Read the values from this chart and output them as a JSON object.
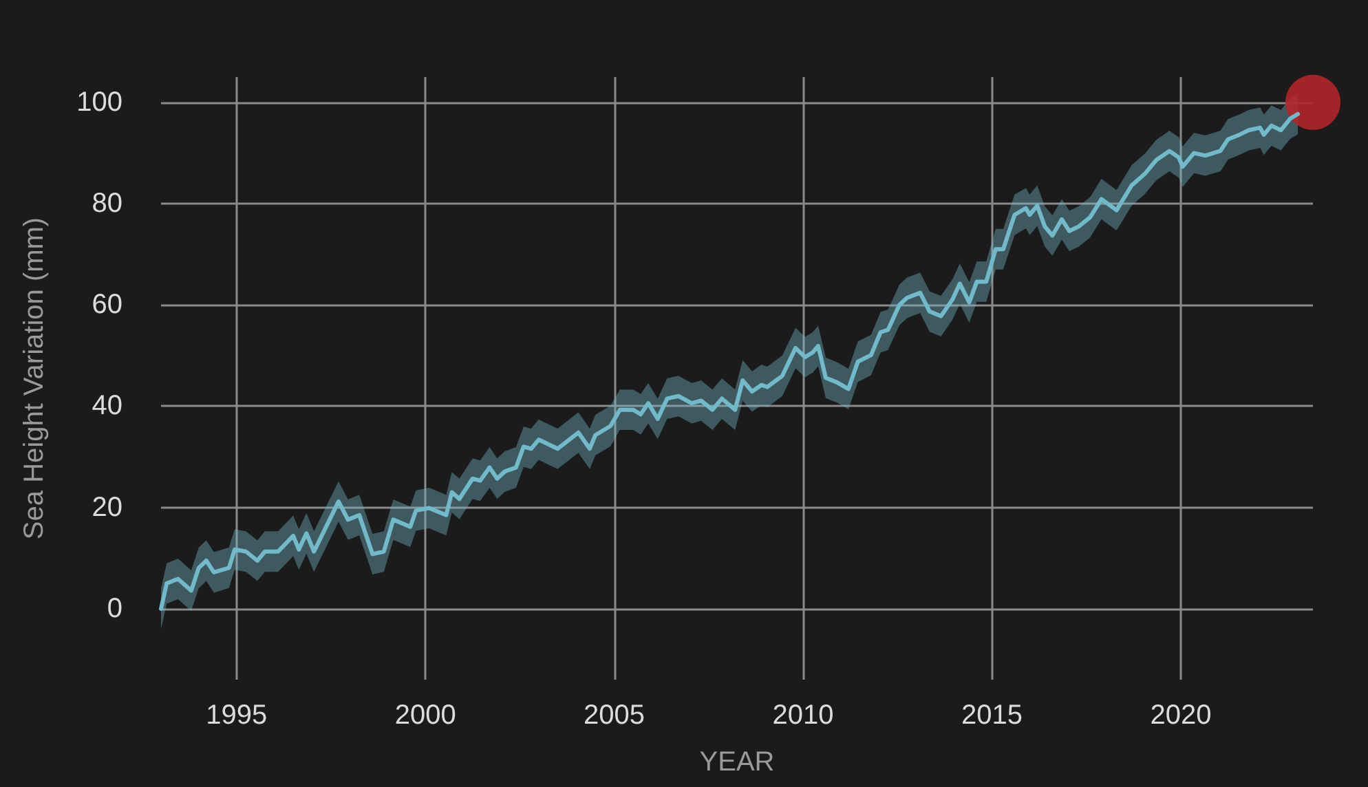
{
  "chart_data": {
    "type": "line",
    "xlabel": "YEAR",
    "ylabel": "Sea Height Variation (mm)",
    "xlim": [
      1993,
      2023.5
    ],
    "ylim": [
      -14,
      105
    ],
    "xticks": [
      1995,
      2000,
      2005,
      2010,
      2015,
      2020
    ],
    "yticks": [
      0,
      20,
      40,
      60,
      80,
      100
    ],
    "grid": true,
    "series": [
      {
        "color": "#72b9c9",
        "marker": "none",
        "line_style": "solid",
        "x": [
          1993.0,
          1993.15,
          1993.45,
          1993.8,
          1994.0,
          1994.2,
          1994.4,
          1994.8,
          1994.95,
          1995.25,
          1995.55,
          1995.75,
          1996.1,
          1996.5,
          1996.65,
          1996.85,
          1997.05,
          1997.7,
          1997.95,
          1998.25,
          1998.6,
          1998.9,
          1999.15,
          1999.6,
          1999.75,
          2000.1,
          2000.55,
          2000.7,
          2000.9,
          2001.25,
          2001.45,
          2001.7,
          2001.9,
          2002.1,
          2002.4,
          2002.6,
          2002.8,
          2003.0,
          2003.5,
          2004.05,
          2004.35,
          2004.5,
          2004.9,
          2005.15,
          2005.5,
          2005.7,
          2005.9,
          2006.15,
          2006.4,
          2006.7,
          2007.05,
          2007.3,
          2007.6,
          2007.85,
          2008.2,
          2008.4,
          2008.65,
          2008.9,
          2009.05,
          2009.45,
          2009.8,
          2010.05,
          2010.25,
          2010.4,
          2010.6,
          2010.9,
          2011.2,
          2011.45,
          2011.8,
          2012.05,
          2012.25,
          2012.55,
          2012.75,
          2013.1,
          2013.35,
          2013.65,
          2013.95,
          2014.15,
          2014.4,
          2014.6,
          2014.85,
          2015.1,
          2015.3,
          2015.6,
          2015.9,
          2016.0,
          2016.2,
          2016.4,
          2016.6,
          2016.85,
          2017.05,
          2017.3,
          2017.6,
          2017.9,
          2018.3,
          2018.7,
          2019.05,
          2019.35,
          2019.7,
          2019.95,
          2020.05,
          2020.35,
          2020.65,
          2021.05,
          2021.25,
          2021.55,
          2021.8,
          2022.1,
          2022.2,
          2022.4,
          2022.65,
          2022.9,
          2023.1
        ],
        "values": [
          0,
          5,
          5.9,
          3.6,
          8.1,
          9.5,
          7.2,
          8.1,
          11.7,
          11.3,
          9.5,
          11.3,
          11.3,
          14.4,
          11.7,
          14.9,
          11.3,
          21.2,
          17.6,
          18.5,
          10.8,
          11.3,
          17.6,
          16.2,
          19.4,
          19.9,
          18.5,
          23,
          21.7,
          25.7,
          25.3,
          27.9,
          25.7,
          27.1,
          27.9,
          32,
          31.6,
          33.4,
          31.6,
          34.8,
          31.6,
          34.3,
          36.1,
          39.3,
          39.3,
          38.4,
          40.6,
          37.5,
          41.5,
          42,
          40.6,
          41.1,
          39.3,
          41.5,
          39.3,
          45.1,
          42.9,
          44.2,
          43.8,
          46,
          51.5,
          49.7,
          50.6,
          51.9,
          45.6,
          44.7,
          43.4,
          48.8,
          50.1,
          54.6,
          55.1,
          60,
          61.4,
          62.4,
          58.7,
          57.8,
          61,
          64.2,
          60.5,
          64.6,
          64.6,
          71,
          71,
          77.8,
          79.1,
          77.8,
          79.6,
          75.5,
          73.7,
          76.9,
          74.6,
          75.5,
          77.3,
          80.9,
          78.7,
          83.6,
          85.9,
          88.6,
          90.4,
          89.1,
          87.3,
          90,
          89.5,
          90.4,
          92.7,
          93.6,
          94.5,
          95,
          93.6,
          95.4,
          94.5,
          96.8,
          97.7
        ],
        "lower": [
          -4,
          1,
          1.9,
          -0.4,
          4.1,
          5.5,
          3.2,
          4.1,
          7.7,
          7.3,
          5.5,
          7.3,
          7.3,
          10.4,
          7.7,
          10.9,
          7.3,
          17.2,
          13.6,
          14.5,
          6.8,
          7.3,
          13.6,
          12.2,
          15.4,
          15.9,
          14.5,
          19,
          17.7,
          21.7,
          21.3,
          23.9,
          21.7,
          23.1,
          23.9,
          28,
          27.6,
          29.4,
          27.6,
          30.8,
          27.6,
          30.3,
          32.1,
          35.3,
          35.3,
          34.4,
          36.6,
          33.5,
          37.5,
          38,
          36.6,
          37.1,
          35.3,
          37.5,
          35.3,
          41.1,
          38.9,
          40.2,
          39.8,
          42,
          47.5,
          45.7,
          46.6,
          47.9,
          41.6,
          40.7,
          39.4,
          44.8,
          46.1,
          50.6,
          51.1,
          56,
          57.4,
          58.4,
          54.7,
          53.8,
          57,
          60.2,
          56.5,
          60.6,
          60.6,
          67,
          67,
          73.8,
          75.1,
          73.8,
          75.6,
          71.5,
          69.7,
          72.9,
          70.6,
          71.5,
          73.3,
          76.9,
          74.7,
          79.6,
          81.9,
          84.6,
          86.4,
          85.1,
          83.3,
          86,
          85.5,
          86.4,
          88.7,
          89.6,
          90.5,
          91,
          89.6,
          91.4,
          90.5,
          92.8,
          93.7
        ],
        "upper": [
          4,
          9,
          9.9,
          7.6,
          12.1,
          13.5,
          11.2,
          12.1,
          15.7,
          15.3,
          13.5,
          15.3,
          15.3,
          18.4,
          15.7,
          18.9,
          15.3,
          25.2,
          21.6,
          22.5,
          14.8,
          15.3,
          21.6,
          20.2,
          23.4,
          23.9,
          22.5,
          27,
          25.7,
          29.7,
          29.3,
          31.9,
          29.7,
          31.1,
          31.9,
          36,
          35.6,
          37.4,
          35.6,
          38.8,
          35.6,
          38.3,
          40.1,
          43.3,
          43.3,
          42.4,
          44.6,
          41.5,
          45.5,
          46,
          44.6,
          45.1,
          43.3,
          45.5,
          43.3,
          49.1,
          46.9,
          48.2,
          47.8,
          50,
          55.5,
          53.7,
          54.6,
          55.9,
          49.6,
          48.7,
          47.4,
          52.8,
          54.1,
          58.6,
          59.1,
          64,
          65.4,
          66.4,
          62.7,
          61.8,
          65,
          68.2,
          64.5,
          68.6,
          68.6,
          75,
          75,
          81.8,
          83.1,
          81.8,
          83.6,
          79.5,
          77.7,
          80.9,
          78.6,
          79.5,
          81.3,
          84.9,
          82.7,
          87.6,
          89.9,
          92.6,
          94.4,
          93.1,
          91.3,
          94,
          93.5,
          94.4,
          96.7,
          97.6,
          98.5,
          99,
          97.6,
          99.4,
          98.5,
          100.8,
          101.7
        ]
      },
      {
        "type": "scatter",
        "color": "#b3262a",
        "marker": "circle",
        "x": [
          2023.5
        ],
        "values": [
          100
        ]
      }
    ]
  }
}
